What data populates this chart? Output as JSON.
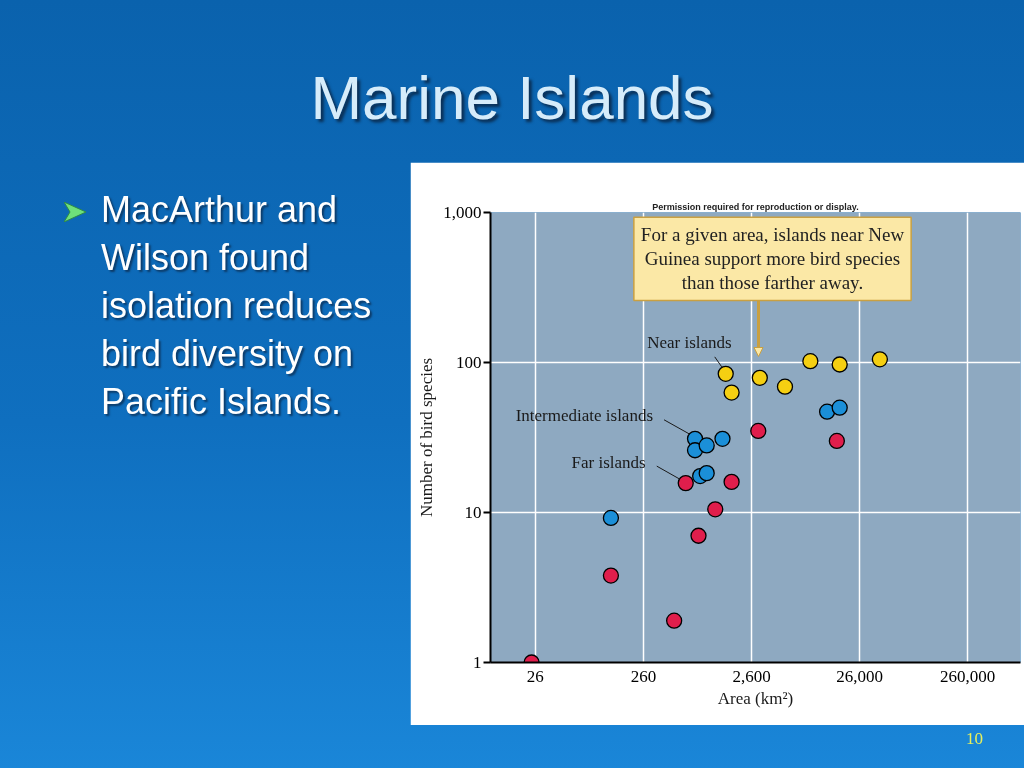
{
  "chart_data": {
    "type": "scatter",
    "title": "Marine Islands",
    "xlabel": "Area (km²)",
    "ylabel": "Number of bird species",
    "log": "xy",
    "grid": true,
    "marker": "circle",
    "xlim": [
      10,
      800000
    ],
    "ylim": [
      1,
      1000
    ],
    "xticks": [
      26,
      260,
      {
        "value": 2600,
        "label": "2,600"
      },
      {
        "value": 26000,
        "label": "26,000"
      },
      {
        "value": 260000,
        "label": "260,000"
      }
    ],
    "yticks": [
      1,
      10,
      100,
      {
        "value": 1000,
        "label": "1,000"
      }
    ],
    "series": [
      {
        "name": "Near islands",
        "color": "#f5cf12",
        "x": [
          1500,
          1700,
          3100,
          5300,
          9100,
          17000,
          40000
        ],
        "values": [
          84,
          63,
          79,
          69,
          102,
          97,
          105
        ]
      },
      {
        "name": "Intermediate islands",
        "color": "#1b8fd8",
        "x": [
          780,
          780,
          1000,
          1400,
          870,
          1000,
          13000,
          17000,
          130
        ],
        "values": [
          31,
          26,
          28,
          31,
          17.5,
          18.3,
          47,
          50,
          9.2
        ]
      },
      {
        "name": "Far islands",
        "color": "#e01e4c",
        "x": [
          640,
          1700,
          1200,
          3000,
          16000,
          840,
          130,
          500,
          24
        ],
        "values": [
          15.7,
          16,
          10.5,
          35,
          30,
          7.0,
          3.8,
          1.9,
          1.0
        ]
      }
    ],
    "annotations": [
      "For a given area, islands near New Guinea support more bird species than those farther away.",
      "MacArthur and Wilson found isolation reduces bird diversity on Pacific Islands.",
      "Permission required for reproduction or display.",
      "10"
    ]
  }
}
